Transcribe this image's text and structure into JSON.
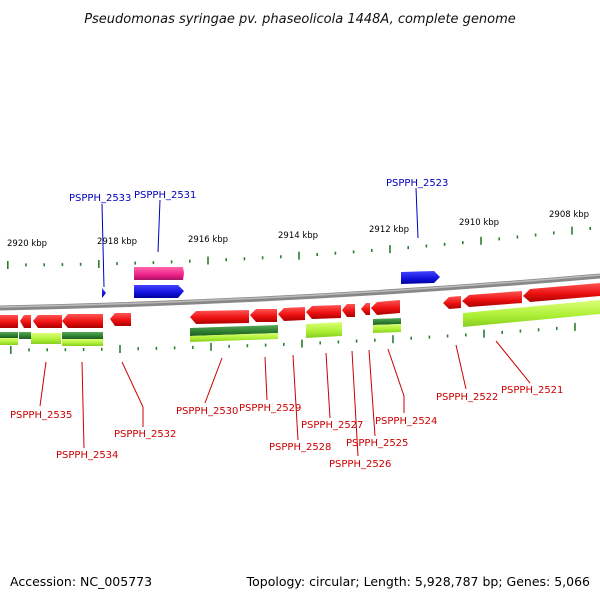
{
  "title": "Pseudomonas syringae pv. phaseolicola 1448A, complete genome",
  "footer": {
    "accession": "Accession: NC_005773",
    "summary": "Topology: circular; Length: 5,928,787 bp; Genes: 5,066"
  },
  "ruler_labels": [
    "2920 kbp",
    "2918 kbp",
    "2916 kbp",
    "2914 kbp",
    "2912 kbp",
    "2910 kbp",
    "2908 kbp"
  ],
  "gene_labels": {
    "top": [
      "PSPPH_2533",
      "PSPPH_2531",
      "PSPPH_2523"
    ],
    "bottom": [
      "PSPPH_2535",
      "PSPPH_2534",
      "PSPPH_2532",
      "PSPPH_2530",
      "PSPPH_2529",
      "PSPPH_2528",
      "PSPPH_2527",
      "PSPPH_2526",
      "PSPPH_2525",
      "PSPPH_2524",
      "PSPPH_2522",
      "PSPPH_2521"
    ]
  },
  "colors": {
    "label_forward": "#0000bb",
    "label_reverse": "#cc0000",
    "gene_red": "#ee1111",
    "gene_blue": "#1111dd",
    "gene_pink": "#ee2288",
    "rna_dark_green": "#2e7d32",
    "rna_light_green": "#aaee33",
    "tick_green": "#2e7d32",
    "backbone": "#999999"
  }
}
